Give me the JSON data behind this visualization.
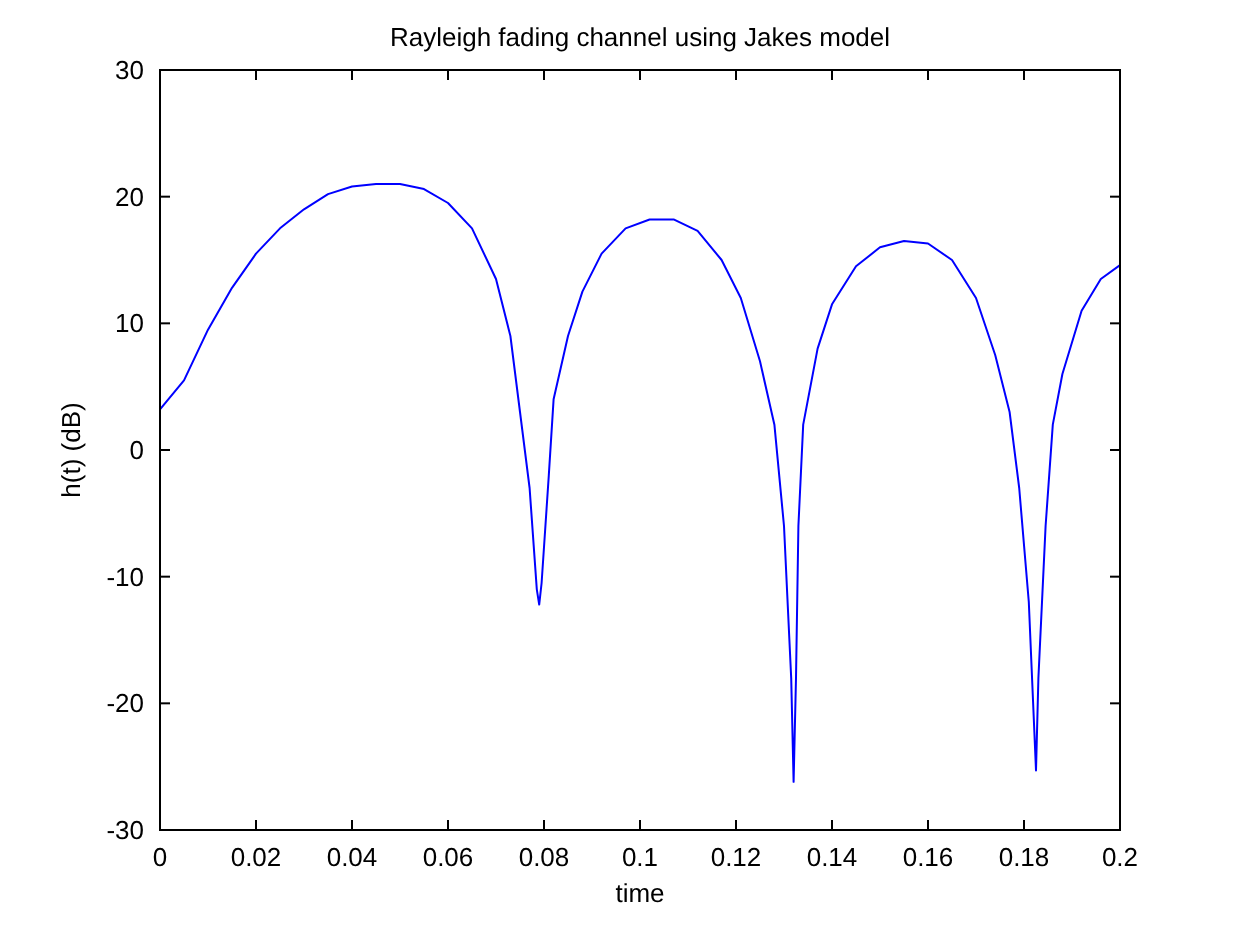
{
  "chart_data": {
    "type": "line",
    "title": "Rayleigh fading channel using Jakes model",
    "xlabel": "time",
    "ylabel": "h(t) (dB)",
    "xlim": [
      0,
      0.2
    ],
    "xticks": [
      0,
      0.02,
      0.04,
      0.06,
      0.08,
      0.1,
      0.12,
      0.14,
      0.16,
      0.18,
      0.2
    ],
    "ylim": [
      -30,
      30
    ],
    "yticks": [
      -30,
      -20,
      -10,
      0,
      10,
      20,
      30
    ],
    "grid": false,
    "series": [
      {
        "color": "#0000ff",
        "x": [
          0,
          0.005,
          0.01,
          0.015,
          0.02,
          0.025,
          0.03,
          0.035,
          0.04,
          0.045,
          0.05,
          0.055,
          0.06,
          0.065,
          0.07,
          0.073,
          0.075,
          0.077,
          0.0785,
          0.079,
          0.0795,
          0.081,
          0.082,
          0.085,
          0.088,
          0.092,
          0.097,
          0.102,
          0.107,
          0.112,
          0.117,
          0.121,
          0.125,
          0.128,
          0.13,
          0.1315,
          0.132,
          0.1325,
          0.133,
          0.134,
          0.137,
          0.14,
          0.145,
          0.15,
          0.155,
          0.16,
          0.165,
          0.17,
          0.174,
          0.177,
          0.179,
          0.181,
          0.1825,
          0.183,
          0.1845,
          0.186,
          0.188,
          0.192,
          0.196,
          0.2
        ],
        "values": [
          3.2,
          5.5,
          9.5,
          12.8,
          15.5,
          17.5,
          19,
          20.2,
          20.8,
          21,
          21,
          20.6,
          19.5,
          17.5,
          13.5,
          9,
          3,
          -3,
          -11,
          -12.2,
          -10.5,
          -2,
          4,
          9,
          12.5,
          15.5,
          17.5,
          18.2,
          18.2,
          17.3,
          15,
          12,
          7,
          2,
          -6,
          -18,
          -26.2,
          -18,
          -6,
          2,
          8,
          11.5,
          14.5,
          16,
          16.5,
          16.3,
          15,
          12,
          7.5,
          3,
          -3,
          -12,
          -25.3,
          -18,
          -6,
          2,
          6,
          11,
          13.5,
          14.6
        ]
      }
    ]
  }
}
